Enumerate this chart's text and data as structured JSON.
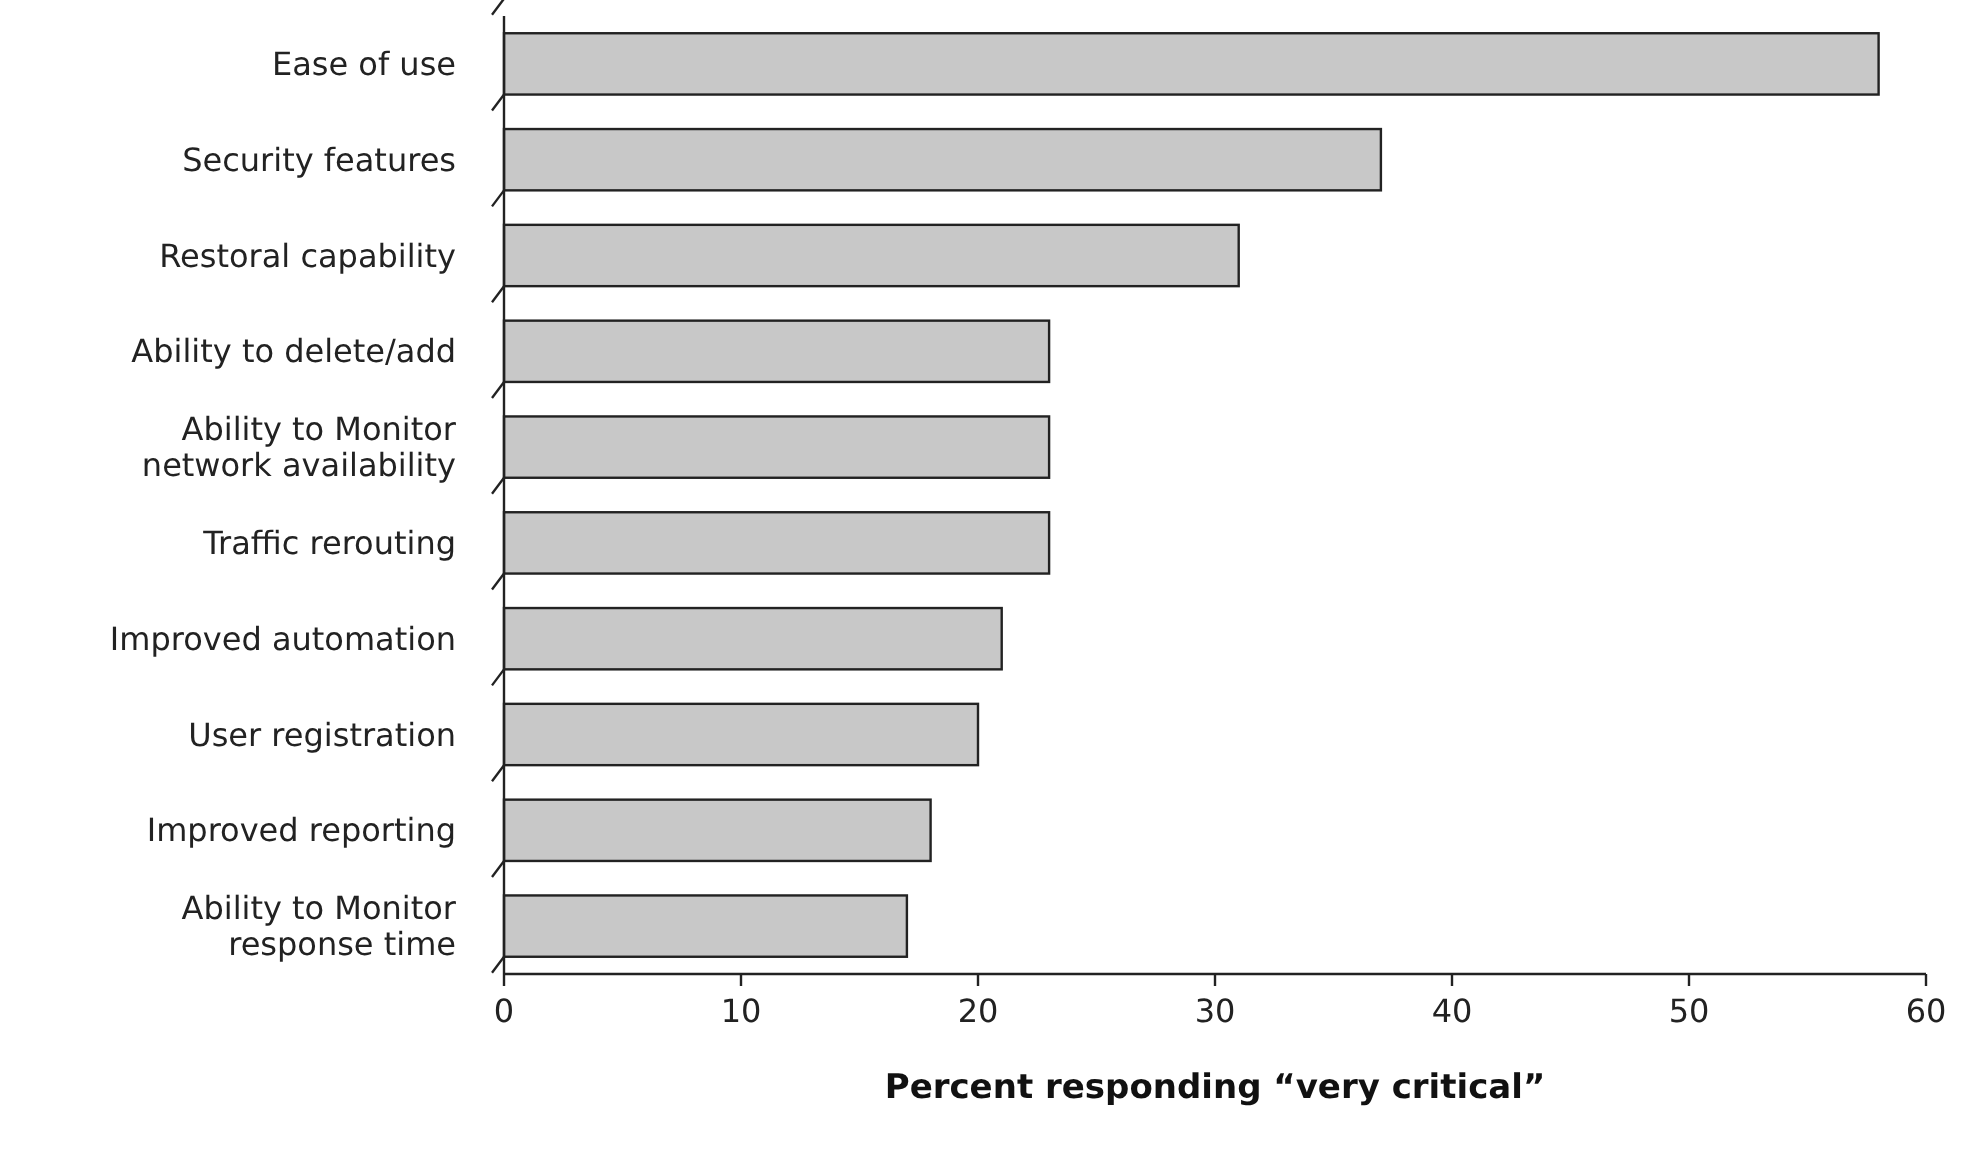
{
  "chart_data": {
    "type": "bar",
    "orientation": "horizontal",
    "xlabel": "Percent responding “very critical”",
    "categories": [
      "Ease of use",
      "Security features",
      "Restoral capability",
      "Ability to delete/add",
      "Ability to Monitor\nnetwork availability",
      "Traffic rerouting",
      "Improved automation",
      "User registration",
      "Improved reporting",
      "Ability to Monitor\nresponse time"
    ],
    "values": [
      58,
      37,
      31,
      23,
      23,
      23,
      21,
      20,
      18,
      17
    ],
    "color": "#c8c8c8",
    "xlim": [
      0,
      60
    ],
    "xticks": [
      0,
      10,
      20,
      30,
      40,
      50,
      60
    ],
    "grid": false
  }
}
